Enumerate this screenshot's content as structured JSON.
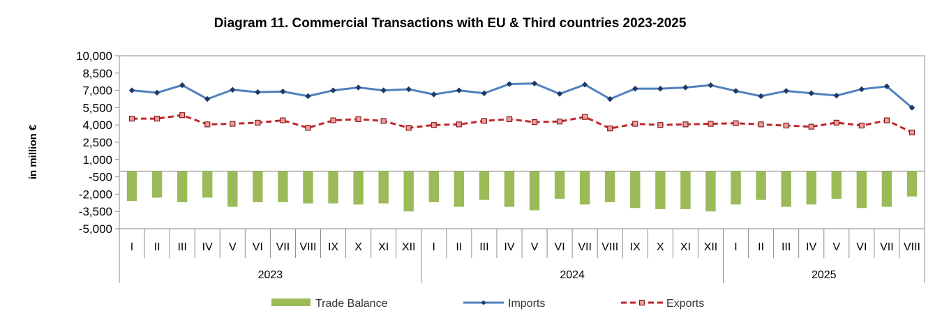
{
  "chart_data": {
    "type": "bar+line",
    "title": "Diagram 11. Commercial Transactions with EU & Third countries 2023-2025",
    "ylabel": "in million  €",
    "xlabel": "",
    "ylim": [
      -5000,
      10000
    ],
    "y_ticks": [
      -5000,
      -3500,
      -2000,
      -500,
      1000,
      2500,
      4000,
      5500,
      7000,
      8500,
      10000
    ],
    "y_tick_labels": [
      "-5,000",
      "-3,500",
      "-2,000",
      "-500",
      "1,000",
      "2,500",
      "4,000",
      "5,500",
      "7,000",
      "8,500",
      "10,000"
    ],
    "grid": false,
    "legend_position": "bottom",
    "categories": [
      "I",
      "II",
      "III",
      "IV",
      "V",
      "VI",
      "VII",
      "VIII",
      "IX",
      "X",
      "XI",
      "XII",
      "I",
      "II",
      "III",
      "IV",
      "V",
      "VI",
      "VII",
      "VIII",
      "IX",
      "X",
      "XI",
      "XII",
      "I",
      "II",
      "III",
      "IV",
      "V",
      "VI",
      "VII",
      "VIII"
    ],
    "year_groups": [
      {
        "label": "2023",
        "count": 12
      },
      {
        "label": "2024",
        "count": 12
      },
      {
        "label": "2025",
        "count": 8
      }
    ],
    "series": [
      {
        "name": "Trade Balance",
        "kind": "bar",
        "color": "#9bbb59",
        "values": [
          -2600,
          -2300,
          -2700,
          -2300,
          -3100,
          -2700,
          -2700,
          -2800,
          -2800,
          -2900,
          -2800,
          -3500,
          -2700,
          -3100,
          -2500,
          -3100,
          -3400,
          -2400,
          -2900,
          -2700,
          -3200,
          -3300,
          -3300,
          -3500,
          -2900,
          -2500,
          -3100,
          -2900,
          -2400,
          -3200,
          -3100,
          -2200
        ]
      },
      {
        "name": "Imports",
        "kind": "line",
        "color": "#4f81bd",
        "marker": "diamond",
        "values": [
          7000,
          6800,
          7450,
          6250,
          7050,
          6850,
          6900,
          6500,
          7000,
          7250,
          7000,
          7100,
          6650,
          7000,
          6750,
          7550,
          7600,
          6700,
          7500,
          6250,
          7150,
          7150,
          7250,
          7450,
          6950,
          6500,
          6950,
          6750,
          6550,
          7100,
          7350,
          5500
        ]
      },
      {
        "name": "Exports",
        "kind": "line",
        "color": "#c0262c",
        "dash": "dashed",
        "marker": "square",
        "values": [
          4550,
          4550,
          4850,
          4050,
          4100,
          4200,
          4400,
          3750,
          4400,
          4500,
          4350,
          3750,
          4000,
          4050,
          4350,
          4500,
          4250,
          4300,
          4700,
          3700,
          4100,
          4000,
          4050,
          4100,
          4150,
          4050,
          3950,
          3850,
          4200,
          3950,
          4400,
          3350
        ]
      }
    ]
  }
}
